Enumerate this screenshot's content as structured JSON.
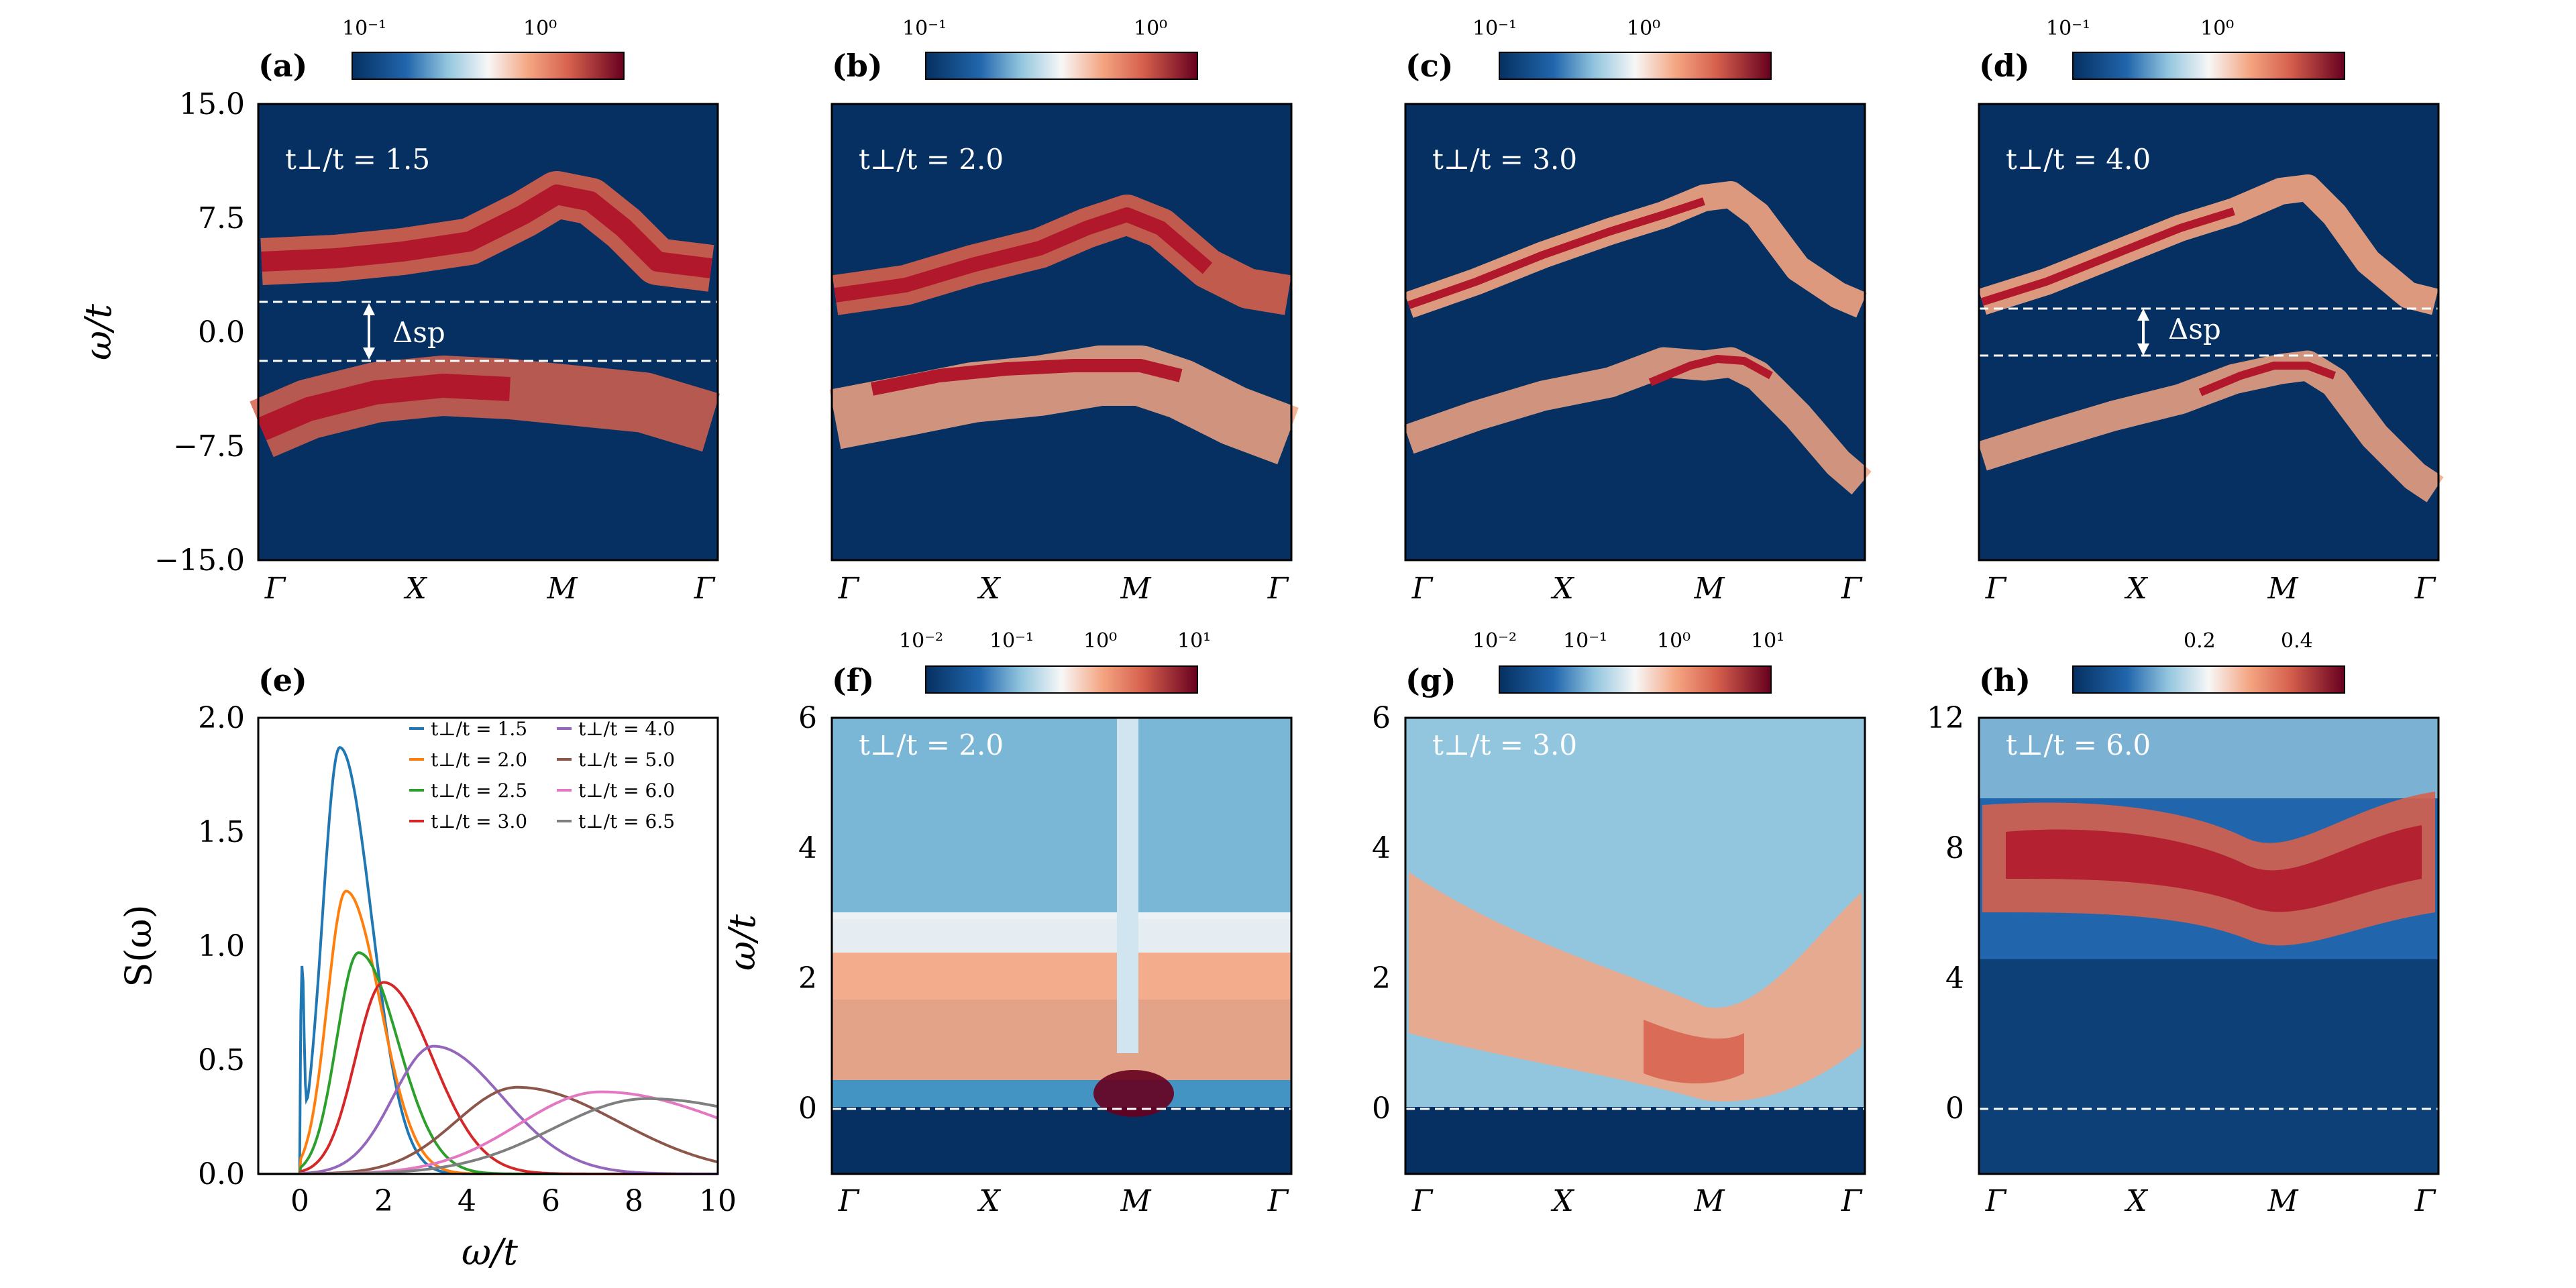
{
  "chart_data": [
    {
      "panel": "(a)",
      "type": "heatmap",
      "ylabel": "ω/t",
      "ylim": [
        -15.0,
        15.0
      ],
      "yticks": [
        "15.0",
        "7.5",
        "0.0",
        "−7.5",
        "−15.0"
      ],
      "xticks": [
        "Γ",
        "X",
        "M",
        "Γ"
      ],
      "annotation": "t⊥/t = 1.5",
      "gap_label": "Δsp",
      "gap_lines": [
        2.0,
        -2.0
      ],
      "colorbar": {
        "scale": "log",
        "ticks": [
          "10⁻¹",
          "10⁰"
        ],
        "colormap": "RdBu_r"
      }
    },
    {
      "panel": "(b)",
      "type": "heatmap",
      "ylim": [
        -15.0,
        15.0
      ],
      "xticks": [
        "Γ",
        "X",
        "M",
        "Γ"
      ],
      "annotation": "t⊥/t = 2.0",
      "colorbar": {
        "scale": "log",
        "ticks": [
          "10⁻¹",
          "10⁰"
        ],
        "colormap": "RdBu_r"
      }
    },
    {
      "panel": "(c)",
      "type": "heatmap",
      "ylim": [
        -15.0,
        15.0
      ],
      "xticks": [
        "Γ",
        "X",
        "M",
        "Γ"
      ],
      "annotation": "t⊥/t = 3.0",
      "colorbar": {
        "scale": "log",
        "ticks": [
          "10⁻¹",
          "10⁰"
        ],
        "colormap": "RdBu_r"
      }
    },
    {
      "panel": "(d)",
      "type": "heatmap",
      "ylim": [
        -15.0,
        15.0
      ],
      "xticks": [
        "Γ",
        "X",
        "M",
        "Γ"
      ],
      "annotation": "t⊥/t = 4.0",
      "gap_label": "Δsp",
      "gap_lines": [
        1.5,
        -1.5
      ],
      "colorbar": {
        "scale": "log",
        "ticks": [
          "10⁻¹",
          "10⁰"
        ],
        "colormap": "RdBu_r"
      }
    },
    {
      "panel": "(e)",
      "type": "line",
      "xlabel": "ω/t",
      "ylabel": "S(ω)",
      "xlim": [
        -1,
        10
      ],
      "ylim": [
        0,
        2.0
      ],
      "xticks": [
        "0",
        "2",
        "4",
        "6",
        "8",
        "10"
      ],
      "yticks": [
        "0.0",
        "0.5",
        "1.0",
        "1.5",
        "2.0"
      ],
      "legend": "top-right",
      "series": [
        {
          "name": "t⊥/t = 1.5",
          "color": "#1f77b4",
          "peak_x": 0.95,
          "peak_y": 1.87
        },
        {
          "name": "t⊥/t = 2.0",
          "color": "#ff7f0e",
          "peak_x": 1.1,
          "peak_y": 1.24
        },
        {
          "name": "t⊥/t = 2.5",
          "color": "#2ca02c",
          "peak_x": 1.4,
          "peak_y": 0.97
        },
        {
          "name": "t⊥/t = 3.0",
          "color": "#d62728",
          "peak_x": 2.0,
          "peak_y": 0.84
        },
        {
          "name": "t⊥/t = 4.0",
          "color": "#9467bd",
          "peak_x": 3.2,
          "peak_y": 0.56
        },
        {
          "name": "t⊥/t = 5.0",
          "color": "#8c564b",
          "peak_x": 5.2,
          "peak_y": 0.38
        },
        {
          "name": "t⊥/t = 6.0",
          "color": "#e377c2",
          "peak_x": 7.2,
          "peak_y": 0.36
        },
        {
          "name": "t⊥/t = 6.5",
          "color": "#7f7f7f",
          "peak_x": 8.3,
          "peak_y": 0.33
        }
      ]
    },
    {
      "panel": "(f)",
      "type": "heatmap",
      "ylabel": "ω/t",
      "ylim": [
        -1,
        6
      ],
      "yticks": [
        "6",
        "4",
        "2",
        "0"
      ],
      "xticks": [
        "Γ",
        "X",
        "M",
        "Γ"
      ],
      "annotation": "t⊥/t = 2.0",
      "colorbar": {
        "scale": "log",
        "ticks": [
          "10⁻²",
          "10⁻¹",
          "10⁰",
          "10¹"
        ],
        "colormap": "RdBu_r"
      }
    },
    {
      "panel": "(g)",
      "type": "heatmap",
      "ylim": [
        -1,
        6
      ],
      "yticks": [
        "6",
        "4",
        "2",
        "0"
      ],
      "xticks": [
        "Γ",
        "X",
        "M",
        "Γ"
      ],
      "annotation": "t⊥/t = 3.0",
      "colorbar": {
        "scale": "log",
        "ticks": [
          "10⁻²",
          "10⁻¹",
          "10⁰",
          "10¹"
        ],
        "colormap": "RdBu_r"
      }
    },
    {
      "panel": "(h)",
      "type": "heatmap",
      "ylim": [
        -2,
        12
      ],
      "yticks": [
        "12",
        "8",
        "4",
        "0"
      ],
      "xticks": [
        "Γ",
        "X",
        "M",
        "Γ"
      ],
      "annotation": "t⊥/t = 6.0",
      "colorbar": {
        "scale": "linear",
        "ticks": [
          "0.2",
          "0.4"
        ],
        "colormap": "RdBu_r"
      }
    }
  ]
}
